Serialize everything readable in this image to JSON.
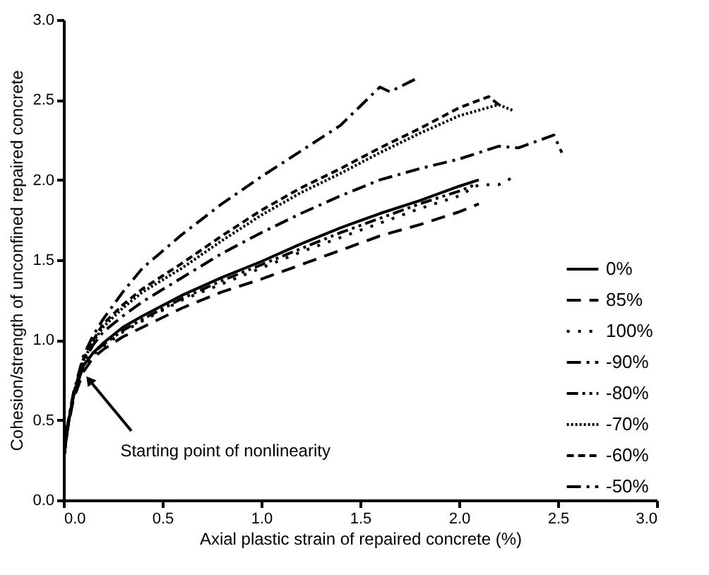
{
  "chart_data": {
    "type": "line",
    "xlabel": "Axial plastic strain of repaired concrete (%)",
    "ylabel": "Cohesion/strength of unconfined repaired concrete",
    "xlim": [
      0,
      3.0
    ],
    "ylim": [
      0,
      3.0
    ],
    "xticks": [
      {
        "value": 0,
        "label": "0.0"
      },
      0.5,
      {
        "value": 1,
        "label": "1.0"
      },
      1.5,
      {
        "value": 2,
        "label": "2.0"
      },
      2.5,
      {
        "value": 3,
        "label": "3.0"
      }
    ],
    "yticks": [
      {
        "value": 0,
        "label": "0.0"
      },
      0.5,
      {
        "value": 1,
        "label": "1.0"
      },
      1.5,
      {
        "value": 2,
        "label": "2.0"
      },
      2.5,
      {
        "value": 3,
        "label": "3.0"
      }
    ],
    "grid": false,
    "legend": "bottom right",
    "marker": "none",
    "annotations": [
      {
        "text": "Starting point of nonlinearity",
        "x": 0.13,
        "y": 0.75
      }
    ],
    "series": [
      {
        "name": "0%",
        "color": "#000000",
        "line_style": "solid",
        "x": [
          0,
          0.02,
          0.05,
          0.1,
          0.15,
          0.2,
          0.3,
          0.4,
          0.6,
          0.8,
          1.0,
          1.2,
          1.4,
          1.6,
          1.8,
          2.0,
          2.1
        ],
        "values": [
          0.25,
          0.45,
          0.65,
          0.84,
          0.92,
          0.98,
          1.08,
          1.15,
          1.28,
          1.39,
          1.49,
          1.6,
          1.7,
          1.79,
          1.87,
          1.96,
          2.0
        ]
      },
      {
        "name": "85%",
        "color": "#000000",
        "line_style": "dashed",
        "x": [
          0,
          0.02,
          0.05,
          0.1,
          0.15,
          0.2,
          0.3,
          0.4,
          0.6,
          0.8,
          1.0,
          1.2,
          1.4,
          1.6,
          1.8,
          2.0,
          2.1
        ],
        "values": [
          0.25,
          0.44,
          0.63,
          0.8,
          0.89,
          0.94,
          1.02,
          1.08,
          1.2,
          1.3,
          1.38,
          1.47,
          1.56,
          1.65,
          1.72,
          1.8,
          1.85
        ]
      },
      {
        "name": "100%",
        "color": "#000000",
        "line_style": "dotted",
        "x": [
          0,
          0.02,
          0.05,
          0.1,
          0.15,
          0.2,
          0.3,
          0.4,
          0.6,
          0.8,
          1.0,
          1.2,
          1.4,
          1.6,
          1.8,
          2.0,
          2.1,
          2.2,
          2.28
        ],
        "values": [
          0.25,
          0.45,
          0.64,
          0.83,
          0.91,
          0.96,
          1.05,
          1.12,
          1.25,
          1.35,
          1.45,
          1.55,
          1.64,
          1.73,
          1.82,
          1.9,
          1.97,
          1.97,
          2.02
        ]
      },
      {
        "name": "-90%",
        "color": "#000000",
        "line_style": "dashdot",
        "x": [
          0,
          0.02,
          0.05,
          0.1,
          0.15,
          0.2,
          0.3,
          0.4,
          0.6,
          0.8,
          1.0,
          1.2,
          1.4,
          1.6,
          1.8,
          2.0,
          2.2,
          2.3,
          2.48,
          2.52
        ],
        "values": [
          0.25,
          0.46,
          0.66,
          0.86,
          0.97,
          1.05,
          1.15,
          1.24,
          1.39,
          1.54,
          1.67,
          1.79,
          1.9,
          2.0,
          2.07,
          2.13,
          2.21,
          2.2,
          2.28,
          2.17
        ]
      },
      {
        "name": "-80%",
        "color": "#000000",
        "line_style": "dashdotdot",
        "x": [
          0,
          0.02,
          0.05,
          0.1,
          0.15,
          0.2,
          0.3,
          0.4,
          0.6,
          0.8,
          1.0,
          1.2,
          1.4,
          1.6,
          1.8,
          2.0,
          2.08
        ],
        "values": [
          0.25,
          0.45,
          0.65,
          0.84,
          0.92,
          0.97,
          1.06,
          1.13,
          1.26,
          1.37,
          1.47,
          1.57,
          1.67,
          1.76,
          1.85,
          1.93,
          1.97
        ]
      },
      {
        "name": "-70%",
        "color": "#000000",
        "line_style": "finedotted",
        "x": [
          0,
          0.02,
          0.05,
          0.1,
          0.15,
          0.2,
          0.3,
          0.4,
          0.6,
          0.8,
          1.0,
          1.2,
          1.4,
          1.6,
          1.8,
          2.0,
          2.2,
          2.28
        ],
        "values": [
          0.25,
          0.46,
          0.66,
          0.87,
          0.99,
          1.08,
          1.2,
          1.3,
          1.45,
          1.62,
          1.78,
          1.92,
          2.04,
          2.17,
          2.29,
          2.4,
          2.47,
          2.43
        ]
      },
      {
        "name": "-60%",
        "color": "#000000",
        "line_style": "shortdashed",
        "x": [
          0,
          0.02,
          0.05,
          0.1,
          0.15,
          0.2,
          0.3,
          0.4,
          0.6,
          0.8,
          1.0,
          1.2,
          1.4,
          1.6,
          1.8,
          2.0,
          2.15,
          2.2
        ],
        "values": [
          0.25,
          0.46,
          0.66,
          0.88,
          1.0,
          1.1,
          1.22,
          1.32,
          1.48,
          1.65,
          1.81,
          1.95,
          2.07,
          2.2,
          2.32,
          2.45,
          2.52,
          2.47
        ]
      },
      {
        "name": "-50%",
        "color": "#000000",
        "line_style": "dashdot",
        "x": [
          0,
          0.02,
          0.05,
          0.1,
          0.15,
          0.2,
          0.3,
          0.4,
          0.6,
          0.8,
          1.0,
          1.2,
          1.4,
          1.6,
          1.65,
          1.78
        ],
        "values": [
          0.25,
          0.47,
          0.67,
          0.9,
          1.03,
          1.13,
          1.3,
          1.45,
          1.66,
          1.85,
          2.02,
          2.18,
          2.34,
          2.58,
          2.55,
          2.63
        ]
      }
    ]
  }
}
